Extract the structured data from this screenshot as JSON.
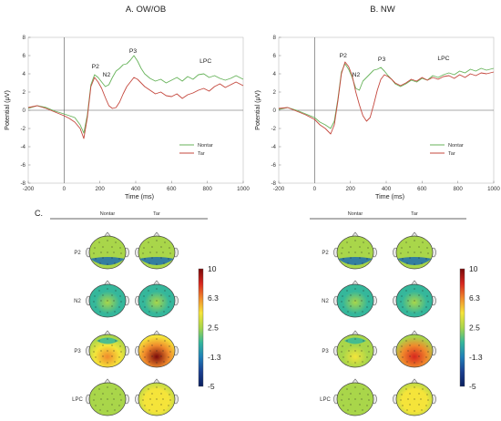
{
  "panel_a": {
    "title": "A. OW/OB",
    "chart_data": {
      "type": "line",
      "xlabel": "Time (ms)",
      "ylabel": "Potential (μV)",
      "xlim": [
        -200,
        1000
      ],
      "ylim": [
        -8,
        8
      ],
      "x_ticks": [
        "-200",
        "0",
        "200",
        "400",
        "600",
        "800",
        "1000"
      ],
      "y_ticks": [
        "-8",
        "-6",
        "-4",
        "-2",
        "0",
        "2",
        "4",
        "6",
        "8"
      ],
      "legend": "bottom-right",
      "annotations": [
        {
          "text": "P2",
          "x": 175,
          "y": 4.6
        },
        {
          "text": "N2",
          "x": 237,
          "y": 3.7
        },
        {
          "text": "P3",
          "x": 385,
          "y": 6.3
        },
        {
          "text": "LPC",
          "x": 790,
          "y": 5.2
        }
      ],
      "series": [
        {
          "name": "Nontar",
          "color": "#67b35a",
          "x": [
            -200,
            -150,
            -100,
            -50,
            0,
            30,
            60,
            90,
            110,
            130,
            150,
            170,
            190,
            210,
            230,
            250,
            270,
            290,
            310,
            330,
            350,
            370,
            390,
            410,
            430,
            450,
            480,
            510,
            540,
            570,
            600,
            630,
            660,
            690,
            720,
            750,
            780,
            810,
            840,
            870,
            900,
            930,
            960,
            1000
          ],
          "y": [
            0.2,
            0.5,
            0.3,
            -0.1,
            -0.4,
            -0.6,
            -0.8,
            -1.6,
            -2.5,
            -0.5,
            2.8,
            3.9,
            3.6,
            3.1,
            2.6,
            2.8,
            3.6,
            4.3,
            4.6,
            5.0,
            5.1,
            5.5,
            6.0,
            5.4,
            4.6,
            4.0,
            3.5,
            3.2,
            3.4,
            3.0,
            3.3,
            3.6,
            3.2,
            3.7,
            3.4,
            3.9,
            4.0,
            3.6,
            3.8,
            3.5,
            3.3,
            3.5,
            3.8,
            3.4
          ]
        },
        {
          "name": "Tar",
          "color": "#c4473d",
          "x": [
            -200,
            -150,
            -100,
            -50,
            0,
            30,
            60,
            90,
            110,
            130,
            150,
            170,
            190,
            210,
            230,
            250,
            270,
            290,
            310,
            330,
            350,
            370,
            390,
            410,
            430,
            450,
            480,
            510,
            540,
            570,
            600,
            630,
            660,
            690,
            720,
            750,
            780,
            810,
            840,
            870,
            900,
            930,
            960,
            1000
          ],
          "y": [
            0.3,
            0.5,
            0.2,
            -0.2,
            -0.6,
            -0.9,
            -1.3,
            -2.0,
            -3.1,
            -0.8,
            2.6,
            3.6,
            3.1,
            2.4,
            1.4,
            0.5,
            0.2,
            0.3,
            0.9,
            1.8,
            2.6,
            3.1,
            3.6,
            3.4,
            3.0,
            2.6,
            2.2,
            1.8,
            2.0,
            1.6,
            1.5,
            1.8,
            1.3,
            1.7,
            1.9,
            2.2,
            2.4,
            2.1,
            2.6,
            2.9,
            2.5,
            2.8,
            3.1,
            2.7
          ]
        }
      ]
    }
  },
  "panel_b": {
    "title": "B. NW",
    "chart_data": {
      "type": "line",
      "xlabel": "Time (ms)",
      "ylabel": "Potential (μV)",
      "xlim": [
        -200,
        1000
      ],
      "ylim": [
        -8,
        8
      ],
      "x_ticks": [
        "-200",
        "0",
        "200",
        "400",
        "600",
        "800",
        "1000"
      ],
      "y_ticks": [
        "-8",
        "-6",
        "-4",
        "-2",
        "0",
        "2",
        "4",
        "6",
        "8"
      ],
      "legend": "bottom-right",
      "annotations": [
        {
          "text": "P2",
          "x": 160,
          "y": 5.8
        },
        {
          "text": "N2",
          "x": 232,
          "y": 3.7
        },
        {
          "text": "P3",
          "x": 375,
          "y": 5.4
        },
        {
          "text": "LPC",
          "x": 720,
          "y": 5.5
        }
      ],
      "series": [
        {
          "name": "Nontar",
          "color": "#67b35a",
          "x": [
            -200,
            -150,
            -100,
            -50,
            0,
            30,
            60,
            90,
            110,
            130,
            150,
            170,
            190,
            210,
            230,
            250,
            270,
            290,
            310,
            330,
            350,
            370,
            390,
            410,
            430,
            450,
            480,
            510,
            540,
            570,
            600,
            630,
            660,
            690,
            720,
            750,
            780,
            810,
            840,
            870,
            900,
            930,
            960,
            1000
          ],
          "y": [
            0.1,
            0.3,
            0.0,
            -0.4,
            -0.8,
            -1.3,
            -1.6,
            -2.0,
            -1.2,
            1.2,
            4.2,
            5.1,
            4.5,
            3.6,
            2.4,
            2.2,
            3.2,
            3.6,
            4.0,
            4.4,
            4.5,
            4.7,
            4.3,
            3.8,
            3.4,
            2.9,
            2.6,
            2.9,
            3.3,
            3.1,
            3.5,
            3.3,
            3.8,
            3.6,
            3.9,
            4.1,
            3.9,
            4.3,
            4.1,
            4.5,
            4.3,
            4.6,
            4.4,
            4.6
          ]
        },
        {
          "name": "Tar",
          "color": "#c4473d",
          "x": [
            -200,
            -150,
            -100,
            -50,
            0,
            30,
            60,
            90,
            110,
            130,
            150,
            170,
            190,
            210,
            230,
            250,
            270,
            290,
            310,
            330,
            350,
            370,
            390,
            410,
            430,
            450,
            480,
            510,
            540,
            570,
            600,
            630,
            660,
            690,
            720,
            750,
            780,
            810,
            840,
            870,
            900,
            930,
            960,
            1000
          ],
          "y": [
            0.2,
            0.3,
            -0.1,
            -0.5,
            -1.0,
            -1.6,
            -2.0,
            -2.6,
            -1.6,
            1.0,
            4.0,
            5.3,
            4.8,
            3.8,
            2.0,
            0.6,
            -0.6,
            -1.2,
            -0.8,
            0.6,
            2.2,
            3.4,
            3.9,
            3.7,
            3.4,
            3.0,
            2.7,
            3.0,
            3.4,
            3.2,
            3.6,
            3.3,
            3.6,
            3.4,
            3.7,
            3.8,
            3.5,
            3.9,
            3.6,
            4.0,
            3.8,
            4.1,
            4.0,
            4.2
          ]
        }
      ]
    }
  },
  "topo": {
    "panel_label": "C.",
    "condition_labels": [
      "Nontar",
      "Tar"
    ],
    "component_labels": [
      "P2",
      "N2",
      "P3",
      "LPC"
    ],
    "colorbar": {
      "ticks": [
        "10",
        "6.3",
        "2.5",
        "-1.3",
        "-5"
      ],
      "range": [
        -5,
        10
      ],
      "colors": [
        "#7a0a0a",
        "#d7261e",
        "#f08a2c",
        "#f5e43a",
        "#a9d64a",
        "#35b79b",
        "#1f7fb8",
        "#1b3f90",
        "#0b1f5e"
      ]
    },
    "groups": [
      {
        "name": "OW/OB",
        "maps": [
          {
            "component": "P2",
            "condition": "Nontar",
            "level": 2.5,
            "hot": 2.5,
            "cold": "bottom"
          },
          {
            "component": "P2",
            "condition": "Tar",
            "level": 2.5,
            "hot": 2.8,
            "cold": "bottom"
          },
          {
            "component": "N2",
            "condition": "Nontar",
            "level": 1.2,
            "hot": 1.6,
            "cold": "none"
          },
          {
            "component": "N2",
            "condition": "Tar",
            "level": 1.3,
            "hot": 1.8,
            "cold": "none"
          },
          {
            "component": "P3",
            "condition": "Nontar",
            "level": 2.0,
            "hot": 6.8,
            "cold": "top"
          },
          {
            "component": "P3",
            "condition": "Tar",
            "level": 4.5,
            "hot": 9.5,
            "cold": "none"
          },
          {
            "component": "LPC",
            "condition": "Nontar",
            "level": 2.4,
            "hot": 3.0,
            "cold": "none"
          },
          {
            "component": "LPC",
            "condition": "Tar",
            "level": 3.0,
            "hot": 4.2,
            "cold": "none"
          }
        ]
      },
      {
        "name": "NW",
        "maps": [
          {
            "component": "P2",
            "condition": "Nontar",
            "level": 2.8,
            "hot": 3.2,
            "cold": "bottom"
          },
          {
            "component": "P2",
            "condition": "Tar",
            "level": 2.8,
            "hot": 3.4,
            "cold": "bottom"
          },
          {
            "component": "N2",
            "condition": "Nontar",
            "level": 1.2,
            "hot": 1.6,
            "cold": "none"
          },
          {
            "component": "N2",
            "condition": "Tar",
            "level": 1.2,
            "hot": 1.6,
            "cold": "none"
          },
          {
            "component": "P3",
            "condition": "Nontar",
            "level": 1.6,
            "hot": 3.5,
            "cold": "top"
          },
          {
            "component": "P3",
            "condition": "Tar",
            "level": 3.2,
            "hot": 7.8,
            "cold": "none"
          },
          {
            "component": "LPC",
            "condition": "Nontar",
            "level": 2.6,
            "hot": 3.2,
            "cold": "none"
          },
          {
            "component": "LPC",
            "condition": "Tar",
            "level": 2.6,
            "hot": 4.4,
            "cold": "none"
          }
        ]
      }
    ]
  }
}
